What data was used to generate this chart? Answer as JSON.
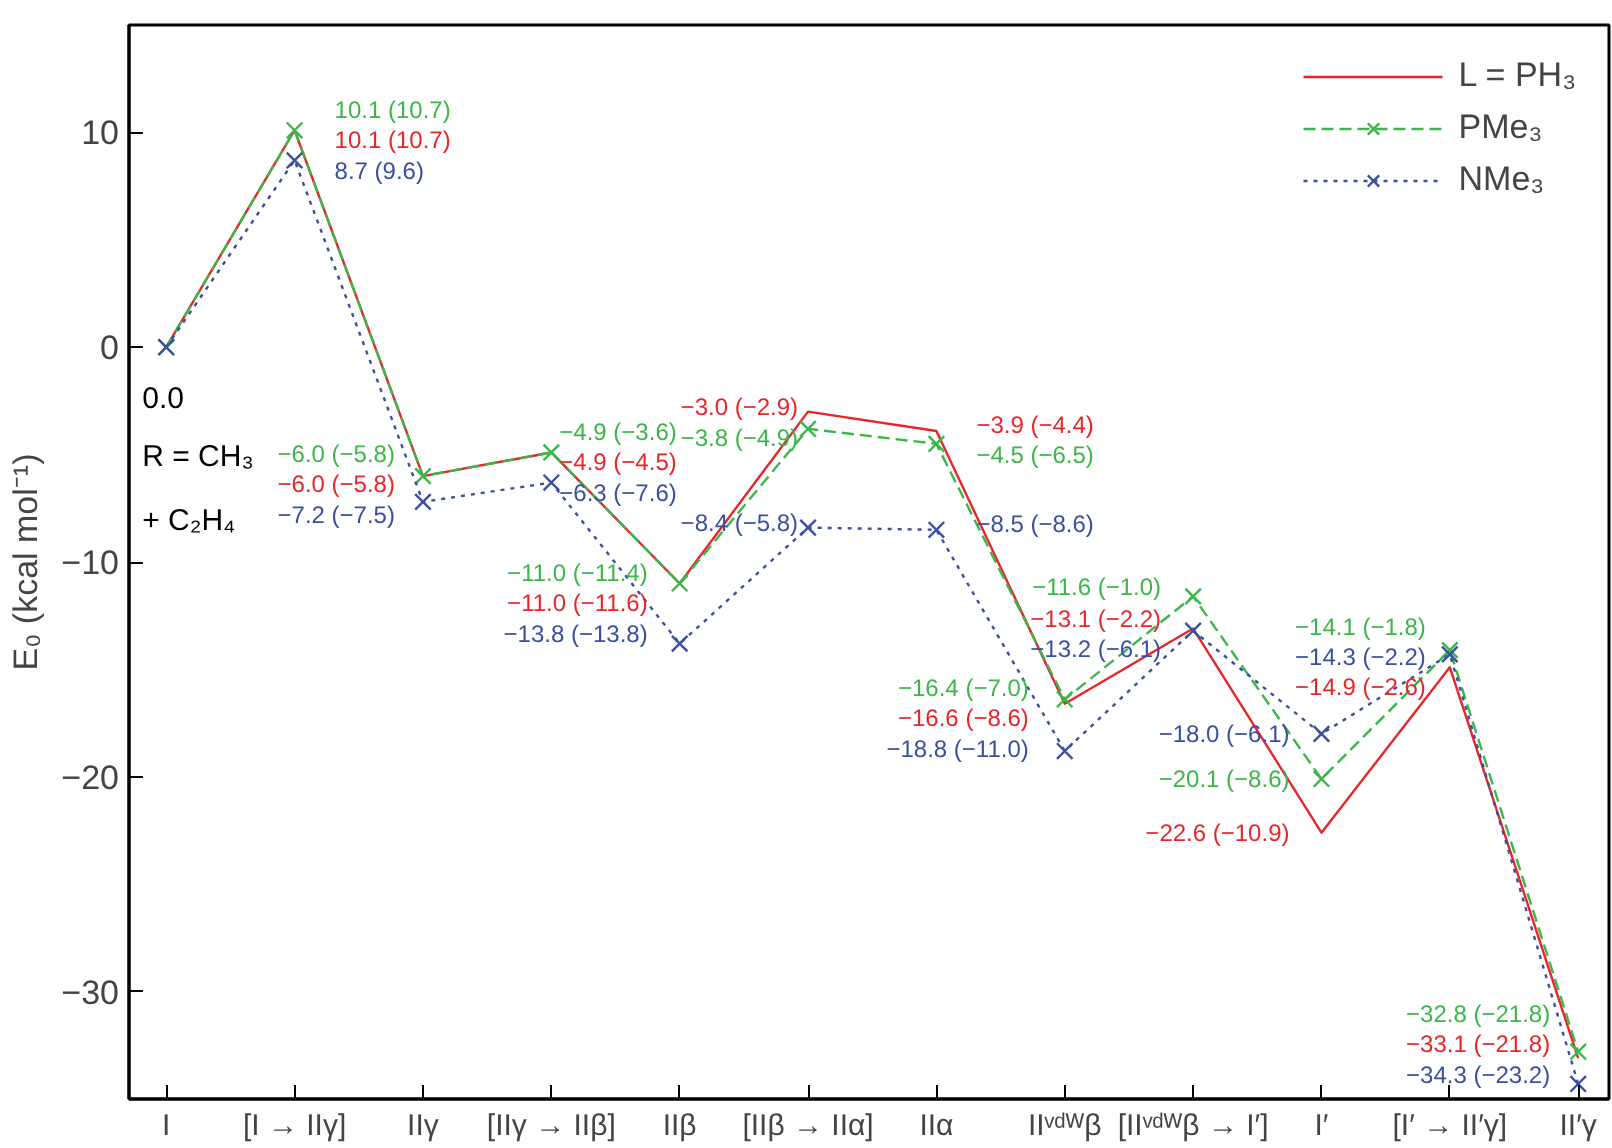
{
  "chart_data": {
    "type": "line",
    "ylabel": "E₀ (kcal mol⁻¹)",
    "categories": [
      "I",
      "[I → IIγ]",
      "IIγ",
      "[IIγ → IIβ]",
      "IIβ",
      "[IIβ → IIα]",
      "IIα",
      "IIᵛᵈᵂβ",
      "[IIᵛᵈᵂβ → I′]",
      "I′",
      "[I′ → II′γ]",
      "II′γ"
    ],
    "series": [
      {
        "name": "L = PH₃",
        "color": "#e8262a",
        "line_style": "solid",
        "marker": "none",
        "values": [
          0,
          10.1,
          -6.0,
          -4.9,
          -11.0,
          -3.0,
          -3.9,
          -16.6,
          -13.1,
          -22.6,
          -14.9,
          -33.1
        ],
        "value_labels": [
          null,
          "10.1 (10.7)",
          "−6.0 (−5.8)",
          "−4.9 (−4.5)",
          "−11.0 (−11.6)",
          "−3.0 (−2.9)",
          "−3.9 (−4.4)",
          "−16.6 (−8.6)",
          "−13.1 (−2.2)",
          "−22.6 (−10.9)",
          "−14.9 (−2.6)",
          "−33.1 (−21.8)"
        ]
      },
      {
        "name": "PMe₃",
        "color": "#3cb64a",
        "line_style": "dashed",
        "marker": "cross",
        "values": [
          0,
          10.1,
          -6.0,
          -4.9,
          -11.0,
          -3.8,
          -4.5,
          -16.4,
          -11.6,
          -20.1,
          -14.1,
          -32.8
        ],
        "value_labels": [
          null,
          "10.1 (10.7)",
          "−6.0 (−5.8)",
          "−4.9 (−3.6)",
          "−11.0 (−11.4)",
          "−3.8 (−4.9)",
          "−4.5 (−6.5)",
          "−16.4 (−7.0)",
          "−11.6 (−1.0)",
          "−20.1 (−8.6)",
          "−14.1 (−1.8)",
          "−32.8 (−21.8)"
        ]
      },
      {
        "name": "NMe₃",
        "color": "#3a4fa0",
        "line_style": "dotted",
        "marker": "cross",
        "values": [
          0,
          8.7,
          -7.2,
          -6.3,
          -13.8,
          -8.4,
          -8.5,
          -18.8,
          -13.2,
          -18.0,
          -14.3,
          -34.3
        ],
        "value_labels": [
          null,
          "8.7 (9.6)",
          "−7.2 (−7.5)",
          "−6.3 (−7.6)",
          "−13.8 (−13.8)",
          "−8.4 (−5.8)",
          "−8.5 (−8.6)",
          "−18.8 (−11.0)",
          "−13.2 (−6.1)",
          "−18.0 (−6.1)",
          "−14.3 (−2.2)",
          "−34.3 (−23.2)"
        ]
      }
    ],
    "ylim": [
      -35,
      15
    ],
    "yticks": [
      -30,
      -20,
      -10,
      0,
      10
    ],
    "grid": false,
    "legend": "top right",
    "annotations": [
      "0.0",
      "R = CH₃",
      "+ C₂H₄"
    ]
  }
}
